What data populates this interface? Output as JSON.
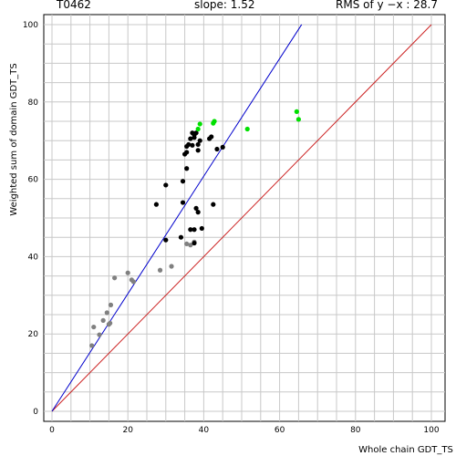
{
  "header": {
    "target": "T0462",
    "slope": "slope: 1.52",
    "rms": "RMS of  y −x : 28.7"
  },
  "chart_data": {
    "type": "scatter",
    "xlabel": "Whole chain GDT_TS",
    "ylabel": "Weighted sum of domain GDT_TS",
    "xlim": [
      0,
      100
    ],
    "ylim": [
      0,
      100
    ],
    "x_ticks": [
      "0",
      "20",
      "40",
      "60",
      "80",
      "100"
    ],
    "y_ticks": [
      "0",
      "20",
      "40",
      "60",
      "80",
      "100"
    ],
    "grid": true,
    "colors": {
      "grid": "#c8c8c8",
      "fit_line": "#0000cc",
      "diagonal": "#cc2222",
      "gray": "#808080",
      "black": "#000000",
      "green": "#00e000"
    },
    "lines": {
      "fit": {
        "slope": 1.52,
        "x": [
          0,
          65.8
        ]
      },
      "diagonal": {
        "x": [
          0,
          100
        ],
        "y": [
          0,
          100
        ]
      }
    },
    "series": [
      {
        "color": "gray",
        "points": [
          [
            10.5,
            17
          ],
          [
            11.0,
            21.8
          ],
          [
            12.5,
            19.8
          ],
          [
            13.5,
            23.5
          ],
          [
            14.5,
            25.5
          ],
          [
            15.0,
            22.5
          ],
          [
            15.3,
            22.8
          ],
          [
            15.5,
            27.5
          ],
          [
            16.5,
            34.5
          ],
          [
            20.0,
            35.8
          ],
          [
            21.0,
            34
          ],
          [
            21.5,
            33.5
          ],
          [
            28.5,
            36.5
          ],
          [
            31.5,
            37.5
          ],
          [
            35.5,
            43.3
          ],
          [
            36.5,
            43
          ],
          [
            37.5,
            43.8
          ]
        ]
      },
      {
        "color": "black",
        "points": [
          [
            27.5,
            53.5
          ],
          [
            30.0,
            44.3
          ],
          [
            30.0,
            58.5
          ],
          [
            34.0,
            45
          ],
          [
            34.5,
            59.5
          ],
          [
            34.5,
            54
          ],
          [
            35.0,
            66.5
          ],
          [
            35.5,
            67
          ],
          [
            35.5,
            68.5
          ],
          [
            36.0,
            69
          ],
          [
            35.5,
            62.8
          ],
          [
            36.5,
            70.5
          ],
          [
            36.5,
            47
          ],
          [
            37.0,
            72
          ],
          [
            37.0,
            68.8
          ],
          [
            37.5,
            71.5
          ],
          [
            37.5,
            70.8
          ],
          [
            37.5,
            43.5
          ],
          [
            37.5,
            47
          ],
          [
            38.0,
            52.5
          ],
          [
            38.0,
            72
          ],
          [
            38.5,
            69
          ],
          [
            38.5,
            67.5
          ],
          [
            38.5,
            51.5
          ],
          [
            39.0,
            70
          ],
          [
            39.5,
            47.3
          ],
          [
            41.5,
            70.5
          ],
          [
            42.0,
            71
          ],
          [
            42.5,
            53.5
          ],
          [
            43.5,
            67.8
          ],
          [
            45.0,
            68.3
          ]
        ]
      },
      {
        "color": "green",
        "points": [
          [
            38.5,
            73
          ],
          [
            39.0,
            74.3
          ],
          [
            42.5,
            74.5
          ],
          [
            42.8,
            75
          ],
          [
            51.5,
            73
          ],
          [
            64.5,
            77.5
          ],
          [
            65.0,
            75.5
          ]
        ]
      }
    ]
  }
}
